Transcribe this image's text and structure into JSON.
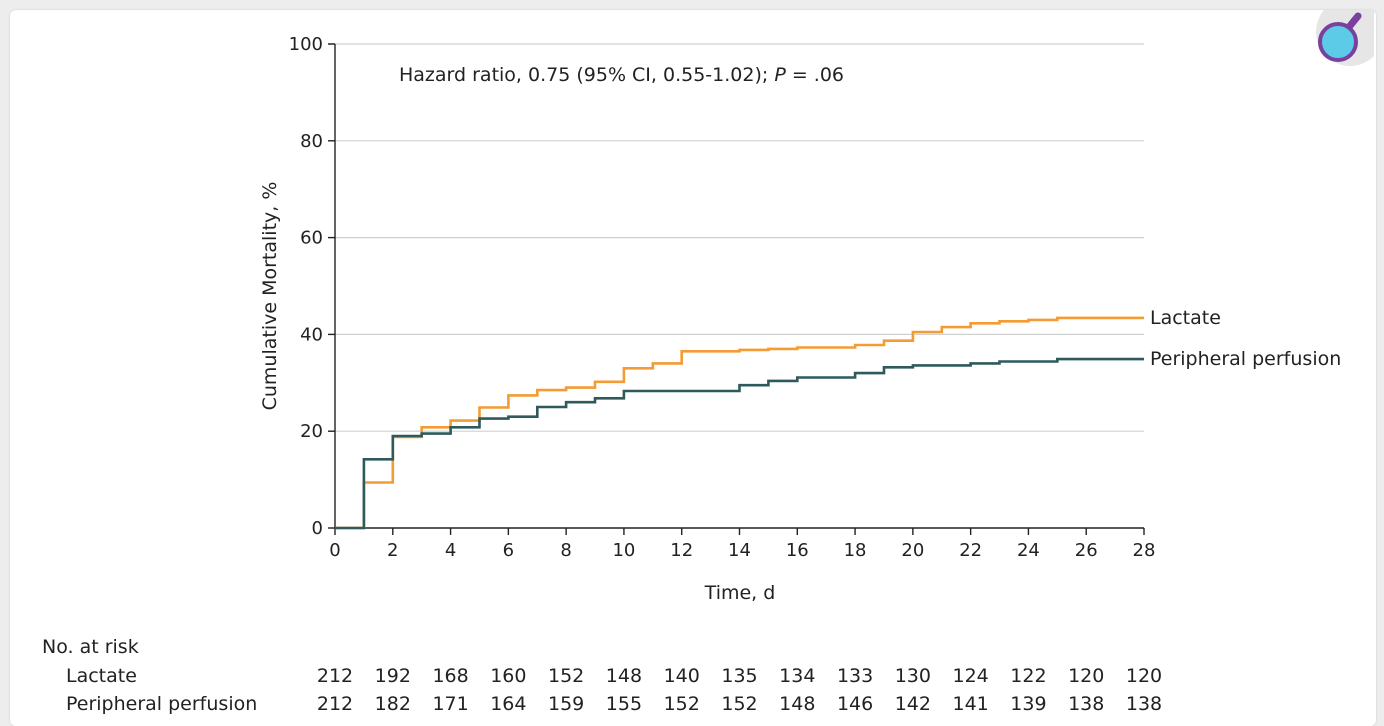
{
  "badge": {
    "icon": "magnifier-icon",
    "color_ring": "#7b3f9e",
    "color_lens": "#5ccbe8"
  },
  "chart_data": {
    "type": "line",
    "subtype": "kaplan-meier-step",
    "annotation": "Hazard ratio, 0.75 (95% CI, 0.55-1.02); P = .06",
    "annotation_parts": {
      "prefix": "Hazard ratio, 0.75 (95% CI, 0.55-1.02); ",
      "p_symbol": "P",
      "p_value": " = .06"
    },
    "xlabel": "Time, d",
    "ylabel": "Cumulative Mortality, %",
    "xlim": [
      0,
      28
    ],
    "ylim": [
      0,
      100
    ],
    "xticks": [
      0,
      2,
      4,
      6,
      8,
      10,
      12,
      14,
      16,
      18,
      20,
      22,
      24,
      26,
      28
    ],
    "yticks": [
      0,
      20,
      40,
      60,
      80,
      100
    ],
    "grid": "horizontal",
    "series": [
      {
        "name": "Lactate",
        "color": "#f39c34",
        "steps": [
          [
            0,
            0
          ],
          [
            1,
            0
          ],
          [
            1,
            9.4
          ],
          [
            2,
            9.4
          ],
          [
            2,
            18.8
          ],
          [
            3,
            18.8
          ],
          [
            3,
            20.8
          ],
          [
            4,
            20.8
          ],
          [
            4,
            22.2
          ],
          [
            5,
            22.2
          ],
          [
            5,
            24.9
          ],
          [
            6,
            24.9
          ],
          [
            6,
            27.4
          ],
          [
            7,
            27.4
          ],
          [
            7,
            28.5
          ],
          [
            8,
            28.5
          ],
          [
            8,
            29.0
          ],
          [
            9,
            29.0
          ],
          [
            9,
            30.2
          ],
          [
            10,
            30.2
          ],
          [
            10,
            33.0
          ],
          [
            11,
            33.0
          ],
          [
            11,
            34.0
          ],
          [
            12,
            34.0
          ],
          [
            12,
            36.5
          ],
          [
            14,
            36.5
          ],
          [
            14,
            36.8
          ],
          [
            15,
            36.8
          ],
          [
            15,
            37.0
          ],
          [
            16,
            37.0
          ],
          [
            16,
            37.3
          ],
          [
            18,
            37.3
          ],
          [
            18,
            37.8
          ],
          [
            19,
            37.8
          ],
          [
            19,
            38.7
          ],
          [
            20,
            38.7
          ],
          [
            20,
            40.5
          ],
          [
            21,
            40.5
          ],
          [
            21,
            41.5
          ],
          [
            22,
            41.5
          ],
          [
            22,
            42.3
          ],
          [
            23,
            42.3
          ],
          [
            23,
            42.7
          ],
          [
            24,
            42.7
          ],
          [
            24,
            43.0
          ],
          [
            25,
            43.0
          ],
          [
            25,
            43.4
          ],
          [
            28,
            43.4
          ]
        ]
      },
      {
        "name": "Peripheral perfusion",
        "color": "#2f5a5c",
        "steps": [
          [
            0,
            0
          ],
          [
            1,
            0
          ],
          [
            1,
            14.2
          ],
          [
            2,
            14.2
          ],
          [
            2,
            19.0
          ],
          [
            3,
            19.0
          ],
          [
            3,
            19.5
          ],
          [
            4,
            19.5
          ],
          [
            4,
            20.8
          ],
          [
            5,
            20.8
          ],
          [
            5,
            22.6
          ],
          [
            6,
            22.6
          ],
          [
            6,
            23.0
          ],
          [
            7,
            23.0
          ],
          [
            7,
            25.0
          ],
          [
            8,
            25.0
          ],
          [
            8,
            26.0
          ],
          [
            9,
            26.0
          ],
          [
            9,
            26.8
          ],
          [
            10,
            26.8
          ],
          [
            10,
            28.3
          ],
          [
            14,
            28.3
          ],
          [
            14,
            29.5
          ],
          [
            15,
            29.5
          ],
          [
            15,
            30.4
          ],
          [
            16,
            30.4
          ],
          [
            16,
            31.1
          ],
          [
            18,
            31.1
          ],
          [
            18,
            32.0
          ],
          [
            19,
            32.0
          ],
          [
            19,
            33.2
          ],
          [
            20,
            33.2
          ],
          [
            20,
            33.6
          ],
          [
            22,
            33.6
          ],
          [
            22,
            34.0
          ],
          [
            23,
            34.0
          ],
          [
            23,
            34.4
          ],
          [
            25,
            34.4
          ],
          [
            25,
            34.9
          ],
          [
            28,
            34.9
          ]
        ]
      }
    ],
    "risk_table": {
      "title": "No. at risk",
      "rows": [
        {
          "label": "Lactate",
          "values": [
            212,
            192,
            168,
            160,
            152,
            148,
            140,
            135,
            134,
            133,
            130,
            124,
            122,
            120,
            120
          ]
        },
        {
          "label": "Peripheral perfusion",
          "values": [
            212,
            182,
            171,
            164,
            159,
            155,
            152,
            152,
            148,
            146,
            142,
            141,
            139,
            138,
            138
          ]
        }
      ]
    }
  }
}
